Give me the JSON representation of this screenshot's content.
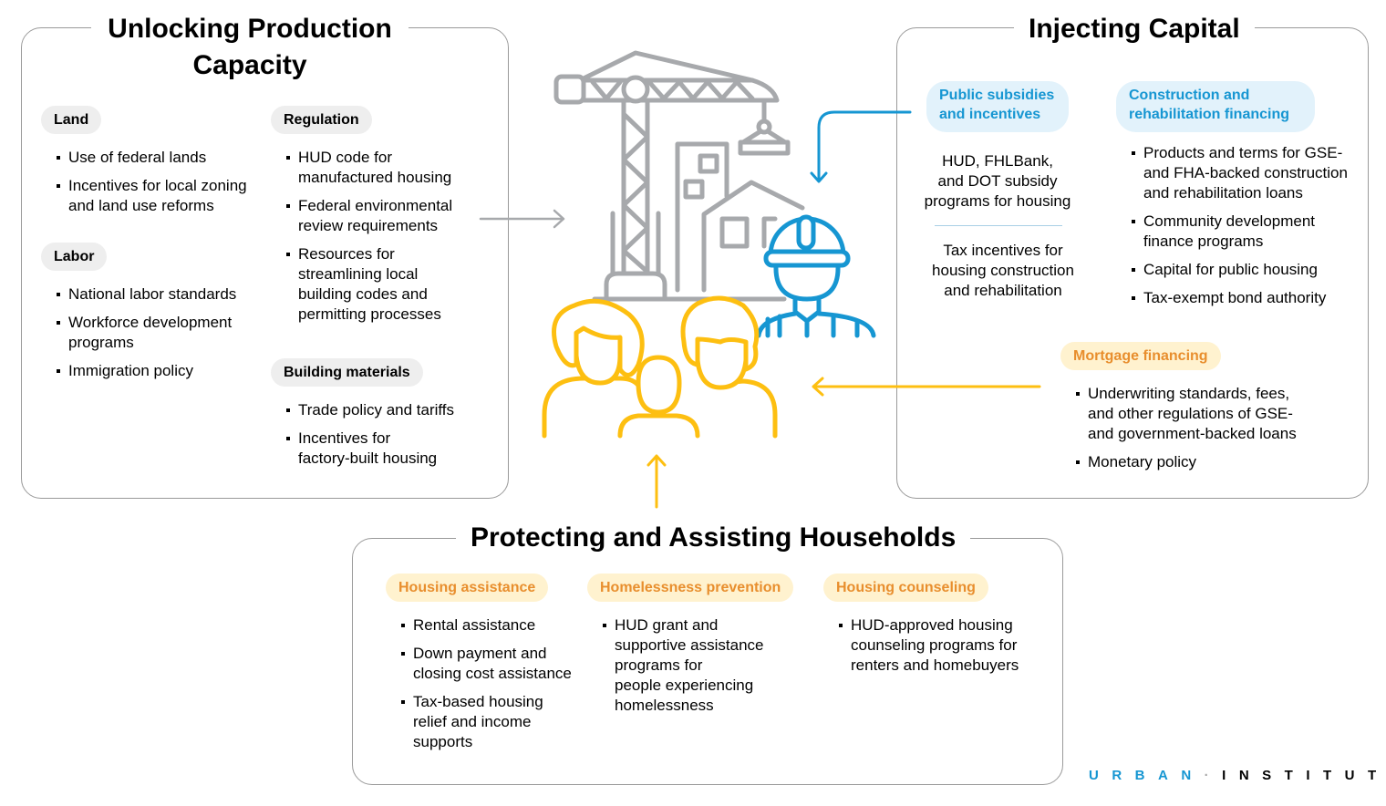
{
  "colors": {
    "gray": "#a7a9ac",
    "blue": "#1696d2",
    "yellow": "#fdbf11",
    "orange_text": "#e88e2d"
  },
  "left": {
    "title": "Unlocking Production\nCapacity",
    "land": {
      "label": "Land",
      "items": [
        "Use of federal lands",
        "Incentives for local zoning\nand land use reforms"
      ]
    },
    "labor": {
      "label": "Labor",
      "items": [
        "National labor standards",
        "Workforce development\nprograms",
        "Immigration policy"
      ]
    },
    "regulation": {
      "label": "Regulation",
      "items": [
        "HUD code for\nmanufactured housing",
        "Federal environmental\nreview requirements",
        "Resources for\nstreamlining local\nbuilding codes and\npermitting processes"
      ]
    },
    "materials": {
      "label": "Building materials",
      "items": [
        "Trade policy and tariffs",
        "Incentives for\nfactory-built housing"
      ]
    }
  },
  "right": {
    "title": "Injecting Capital",
    "subsidies": {
      "label": "Public subsidies\nand incentives",
      "text1": "HUD, FHLBank,\nand DOT subsidy\nprograms for housing",
      "text2": "Tax incentives for\nhousing construction\nand rehabilitation"
    },
    "construction": {
      "label": "Construction and\nrehabilitation financing",
      "items": [
        "Products and terms for GSE-\nand FHA-backed construction\nand rehabilitation loans",
        "Community development\nfinance programs",
        "Capital for public housing",
        "Tax-exempt bond authority"
      ]
    },
    "mortgage": {
      "label": "Mortgage financing",
      "items": [
        "Underwriting standards, fees,\nand other regulations of GSE-\nand government-backed loans",
        "Monetary policy"
      ]
    }
  },
  "bottom": {
    "title": "Protecting and Assisting Households",
    "assistance": {
      "label": "Housing assistance",
      "items": [
        "Rental assistance",
        "Down payment and\nclosing cost assistance",
        "Tax-based housing\nrelief and income\nsupports"
      ]
    },
    "homelessness": {
      "label": "Homelessness prevention",
      "items": [
        "HUD grant and\nsupportive assistance\nprograms for\npeople experiencing\nhomelessness"
      ]
    },
    "counseling": {
      "label": "Housing counseling",
      "items": [
        "HUD-approved housing\ncounseling programs for\nrenters and homebuyers"
      ]
    }
  },
  "logo": {
    "part1": "URBAN",
    "sep": "·",
    "part2": "INSTITUTE"
  }
}
